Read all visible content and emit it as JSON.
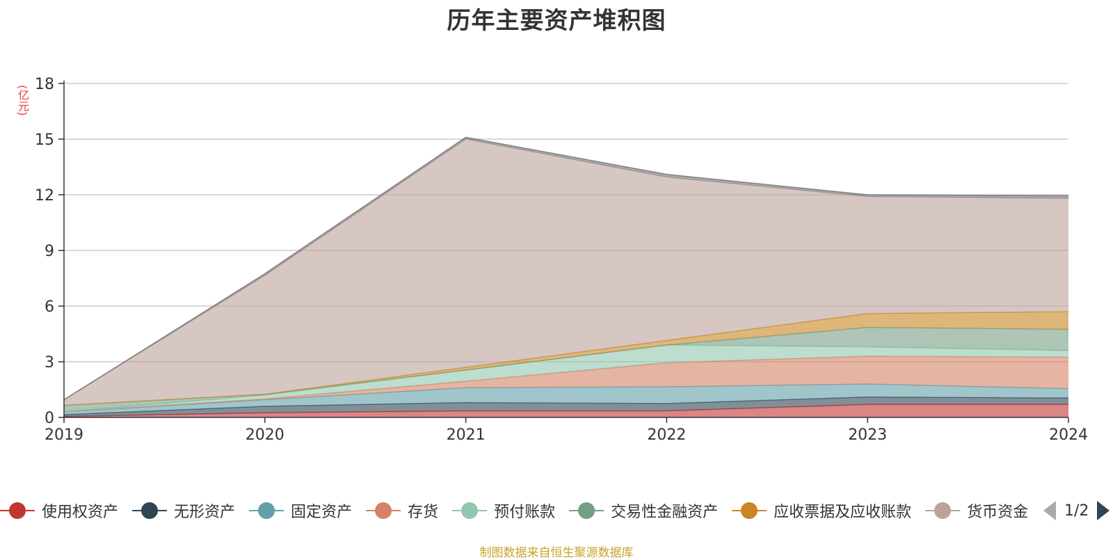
{
  "chart_data": {
    "type": "area",
    "stacked": true,
    "title": "历年主要资产堆积图",
    "y_unit": "(亿元)",
    "x": [
      "2019",
      "2020",
      "2021",
      "2022",
      "2023",
      "2024"
    ],
    "ylim": [
      0,
      18
    ],
    "yticks": [
      "0",
      "3",
      "6",
      "9",
      "12",
      "15",
      "18"
    ],
    "grid": true,
    "legend_position": "bottom",
    "series": [
      {
        "name": "使用权资产",
        "color": "#c23531",
        "values": [
          0.05,
          0.25,
          0.35,
          0.35,
          0.7,
          0.7
        ]
      },
      {
        "name": "无形资产",
        "color": "#2f4554",
        "values": [
          0.1,
          0.35,
          0.45,
          0.4,
          0.4,
          0.35
        ]
      },
      {
        "name": "固定资产",
        "color": "#61a0a8",
        "values": [
          0.15,
          0.35,
          0.8,
          0.9,
          0.7,
          0.5
        ]
      },
      {
        "name": "存货",
        "color": "#d48265",
        "values": [
          0.0,
          0.05,
          0.35,
          1.3,
          1.5,
          1.7
        ]
      },
      {
        "name": "预付账款",
        "color": "#91c7ae",
        "values": [
          0.0,
          0.2,
          0.6,
          0.95,
          0.5,
          0.35
        ]
      },
      {
        "name": "交易性金融资产",
        "color": "#749f83",
        "values": [
          0.35,
          0.05,
          0.0,
          0.0,
          1.05,
          1.15
        ]
      },
      {
        "name": "应收票据及应收账款",
        "color": "#ca8622",
        "values": [
          0.0,
          0.0,
          0.15,
          0.25,
          0.75,
          0.95
        ]
      },
      {
        "name": "货币资金",
        "color": "#bda29a",
        "values": [
          0.3,
          6.4,
          12.3,
          8.8,
          6.3,
          6.1
        ]
      },
      {
        "name": "",
        "color": "#6e7074",
        "values": [
          0.0,
          0.1,
          0.1,
          0.15,
          0.1,
          0.15
        ]
      }
    ],
    "legend_page": "1/2"
  },
  "source_note": "制图数据来自恒生聚源数据库"
}
